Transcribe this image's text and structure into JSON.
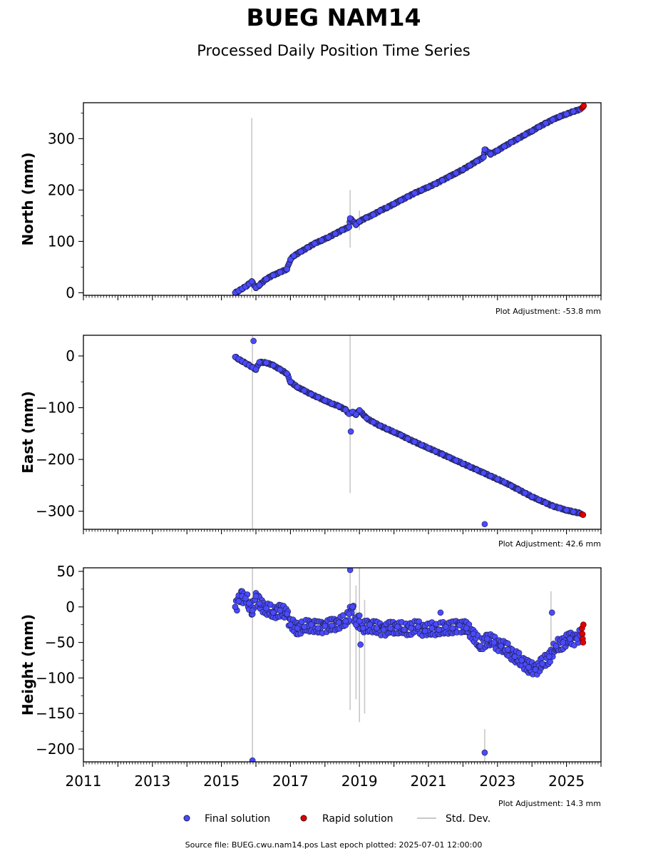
{
  "title": "BUEG NAM14",
  "subtitle": "Processed Daily Position Time Series",
  "footer": "Source file: BUEG.cwu.nam14.pos  Last epoch plotted: 2025-07-01 12:00:00",
  "legend": {
    "final": "Final solution",
    "rapid": "Rapid solution",
    "stddev": "Std. Dev."
  },
  "colors": {
    "final": "#4a4aff",
    "rapid": "#e00000",
    "stddev": "#c8c8c8",
    "edge": "#1a1a3a"
  },
  "chart_data": [
    {
      "type": "scatter",
      "ylabel": "North (mm)",
      "adjustment": "Plot Adjustment: -53.8 mm",
      "xlim": [
        2011,
        2026
      ],
      "ylim": [
        -5,
        370
      ],
      "yticks": [
        0,
        100,
        200,
        300
      ],
      "ytick_labels": [
        "0",
        "100",
        "200",
        "300"
      ],
      "final_points": [
        [
          2015.4,
          0
        ],
        [
          2015.5,
          4
        ],
        [
          2015.6,
          8
        ],
        [
          2015.7,
          12
        ],
        [
          2015.8,
          17
        ],
        [
          2015.88,
          22
        ],
        [
          2016.0,
          10
        ],
        [
          2016.1,
          15
        ],
        [
          2016.3,
          27
        ],
        [
          2016.5,
          34
        ],
        [
          2016.7,
          40
        ],
        [
          2016.9,
          46
        ],
        [
          2017.0,
          65
        ],
        [
          2017.1,
          72
        ],
        [
          2017.3,
          80
        ],
        [
          2017.5,
          88
        ],
        [
          2017.7,
          96
        ],
        [
          2017.9,
          102
        ],
        [
          2018.1,
          108
        ],
        [
          2018.3,
          115
        ],
        [
          2018.5,
          122
        ],
        [
          2018.7,
          128
        ],
        [
          2018.73,
          145
        ],
        [
          2018.9,
          133
        ],
        [
          2019.0,
          139
        ],
        [
          2019.2,
          146
        ],
        [
          2019.4,
          152
        ],
        [
          2019.6,
          160
        ],
        [
          2019.8,
          166
        ],
        [
          2020.0,
          173
        ],
        [
          2020.2,
          180
        ],
        [
          2020.4,
          187
        ],
        [
          2020.6,
          194
        ],
        [
          2020.8,
          200
        ],
        [
          2021.0,
          206
        ],
        [
          2021.2,
          212
        ],
        [
          2021.4,
          219
        ],
        [
          2021.6,
          226
        ],
        [
          2021.8,
          233
        ],
        [
          2022.0,
          240
        ],
        [
          2022.2,
          248
        ],
        [
          2022.4,
          256
        ],
        [
          2022.6,
          264
        ],
        [
          2022.63,
          279
        ],
        [
          2022.8,
          270
        ],
        [
          2023.0,
          277
        ],
        [
          2023.2,
          285
        ],
        [
          2023.4,
          293
        ],
        [
          2023.6,
          300
        ],
        [
          2023.8,
          308
        ],
        [
          2024.0,
          315
        ],
        [
          2024.2,
          323
        ],
        [
          2024.4,
          330
        ],
        [
          2024.6,
          337
        ],
        [
          2024.8,
          343
        ],
        [
          2025.0,
          348
        ],
        [
          2025.2,
          353
        ],
        [
          2025.4,
          357
        ]
      ],
      "rapid_points": [
        [
          2025.45,
          360
        ],
        [
          2025.48,
          362
        ],
        [
          2025.5,
          364
        ]
      ],
      "error_bars": [
        [
          2015.88,
          0,
          340
        ],
        [
          2018.73,
          88,
          200
        ],
        [
          2019.0,
          122,
          160
        ]
      ],
      "outliers": []
    },
    {
      "type": "scatter",
      "ylabel": "East (mm)",
      "adjustment": "Plot Adjustment: 42.6 mm",
      "xlim": [
        2011,
        2026
      ],
      "ylim": [
        -335,
        40
      ],
      "yticks": [
        0,
        -100,
        -200,
        -300
      ],
      "ytick_labels": [
        "0",
        "−100",
        "−200",
        "−300"
      ],
      "final_points": [
        [
          2015.4,
          -2
        ],
        [
          2015.5,
          -6
        ],
        [
          2015.6,
          -10
        ],
        [
          2015.7,
          -14
        ],
        [
          2015.8,
          -18
        ],
        [
          2015.9,
          -22
        ],
        [
          2016.0,
          -26
        ],
        [
          2016.1,
          -12
        ],
        [
          2016.3,
          -13
        ],
        [
          2016.5,
          -18
        ],
        [
          2016.7,
          -26
        ],
        [
          2016.9,
          -34
        ],
        [
          2017.0,
          -50
        ],
        [
          2017.2,
          -60
        ],
        [
          2017.4,
          -67
        ],
        [
          2017.6,
          -74
        ],
        [
          2017.8,
          -80
        ],
        [
          2018.0,
          -86
        ],
        [
          2018.2,
          -92
        ],
        [
          2018.4,
          -97
        ],
        [
          2018.6,
          -104
        ],
        [
          2018.7,
          -112
        ],
        [
          2018.8,
          -108
        ],
        [
          2018.9,
          -113
        ],
        [
          2019.0,
          -105
        ],
        [
          2019.2,
          -120
        ],
        [
          2019.4,
          -128
        ],
        [
          2019.6,
          -135
        ],
        [
          2019.8,
          -141
        ],
        [
          2020.0,
          -147
        ],
        [
          2020.2,
          -153
        ],
        [
          2020.4,
          -160
        ],
        [
          2020.6,
          -166
        ],
        [
          2020.8,
          -172
        ],
        [
          2021.0,
          -178
        ],
        [
          2021.2,
          -184
        ],
        [
          2021.4,
          -190
        ],
        [
          2021.6,
          -196
        ],
        [
          2021.8,
          -202
        ],
        [
          2022.0,
          -208
        ],
        [
          2022.2,
          -214
        ],
        [
          2022.4,
          -220
        ],
        [
          2022.6,
          -226
        ],
        [
          2022.8,
          -232
        ],
        [
          2023.0,
          -238
        ],
        [
          2023.2,
          -244
        ],
        [
          2023.4,
          -251
        ],
        [
          2023.6,
          -258
        ],
        [
          2023.8,
          -265
        ],
        [
          2024.0,
          -272
        ],
        [
          2024.2,
          -278
        ],
        [
          2024.4,
          -284
        ],
        [
          2024.6,
          -290
        ],
        [
          2024.8,
          -294
        ],
        [
          2025.0,
          -298
        ],
        [
          2025.2,
          -301
        ],
        [
          2025.4,
          -304
        ]
      ],
      "rapid_points": [
        [
          2025.45,
          -306
        ],
        [
          2025.48,
          -307
        ]
      ],
      "error_bars": [
        [
          2015.9,
          -335,
          40
        ],
        [
          2018.73,
          -265,
          40
        ]
      ],
      "outliers": [
        [
          2015.93,
          29
        ],
        [
          2018.75,
          -146
        ],
        [
          2022.63,
          -325
        ]
      ]
    },
    {
      "type": "scatter",
      "ylabel": "Height (mm)",
      "adjustment": "Plot Adjustment: 14.3 mm",
      "xlim": [
        2011,
        2026
      ],
      "ylim": [
        -218,
        55
      ],
      "yticks": [
        50,
        0,
        -50,
        -100,
        -150,
        -200
      ],
      "ytick_labels": [
        "50",
        "0",
        "−50",
        "−100",
        "−150",
        "−200"
      ],
      "xticks": [
        2011,
        2013,
        2015,
        2017,
        2019,
        2021,
        2023,
        2025
      ],
      "xtick_labels": [
        "2011",
        "2013",
        "2015",
        "2017",
        "2019",
        "2021",
        "2023",
        "2025"
      ],
      "final_points": [
        [
          2015.4,
          0
        ],
        [
          2015.5,
          8
        ],
        [
          2015.6,
          15
        ],
        [
          2015.7,
          12
        ],
        [
          2015.8,
          5
        ],
        [
          2015.9,
          -5
        ],
        [
          2016.0,
          15
        ],
        [
          2016.1,
          5
        ],
        [
          2016.3,
          -2
        ],
        [
          2016.5,
          -8
        ],
        [
          2016.7,
          -5
        ],
        [
          2016.9,
          -10
        ],
        [
          2017.0,
          -25
        ],
        [
          2017.2,
          -30
        ],
        [
          2017.4,
          -28
        ],
        [
          2017.6,
          -25
        ],
        [
          2017.8,
          -30
        ],
        [
          2018.0,
          -27
        ],
        [
          2018.2,
          -26
        ],
        [
          2018.4,
          -22
        ],
        [
          2018.6,
          -20
        ],
        [
          2018.7,
          -10
        ],
        [
          2018.8,
          0
        ],
        [
          2018.9,
          -25
        ],
        [
          2019.0,
          -20
        ],
        [
          2019.1,
          -30
        ],
        [
          2019.3,
          -25
        ],
        [
          2019.5,
          -30
        ],
        [
          2019.7,
          -32
        ],
        [
          2019.9,
          -30
        ],
        [
          2020.1,
          -28
        ],
        [
          2020.3,
          -32
        ],
        [
          2020.5,
          -30
        ],
        [
          2020.7,
          -28
        ],
        [
          2020.9,
          -34
        ],
        [
          2021.1,
          -30
        ],
        [
          2021.3,
          -32
        ],
        [
          2021.5,
          -28
        ],
        [
          2021.7,
          -30
        ],
        [
          2021.9,
          -26
        ],
        [
          2022.1,
          -30
        ],
        [
          2022.3,
          -38
        ],
        [
          2022.5,
          -55
        ],
        [
          2022.7,
          -45
        ],
        [
          2022.9,
          -50
        ],
        [
          2023.1,
          -55
        ],
        [
          2023.3,
          -60
        ],
        [
          2023.5,
          -70
        ],
        [
          2023.7,
          -75
        ],
        [
          2023.9,
          -85
        ],
        [
          2024.1,
          -88
        ],
        [
          2024.3,
          -80
        ],
        [
          2024.5,
          -70
        ],
        [
          2024.7,
          -55
        ],
        [
          2024.9,
          -50
        ],
        [
          2025.1,
          -45
        ],
        [
          2025.3,
          -45
        ],
        [
          2025.4,
          -40
        ]
      ],
      "rapid_points": [
        [
          2025.45,
          -30
        ],
        [
          2025.46,
          -38
        ],
        [
          2025.47,
          -45
        ],
        [
          2025.48,
          -50
        ],
        [
          2025.49,
          -25
        ]
      ],
      "error_bars": [
        [
          2015.9,
          -218,
          55
        ],
        [
          2018.73,
          -145,
          55
        ],
        [
          2018.9,
          -130,
          30
        ],
        [
          2019.0,
          -162,
          55
        ],
        [
          2019.15,
          -150,
          10
        ],
        [
          2024.55,
          -80,
          22
        ],
        [
          2022.63,
          -225,
          -172
        ]
      ],
      "outliers": [
        [
          2018.73,
          52
        ],
        [
          2019.03,
          -53
        ],
        [
          2015.9,
          -216
        ],
        [
          2022.63,
          -205
        ],
        [
          2024.58,
          -8
        ],
        [
          2021.35,
          -8
        ]
      ]
    }
  ]
}
